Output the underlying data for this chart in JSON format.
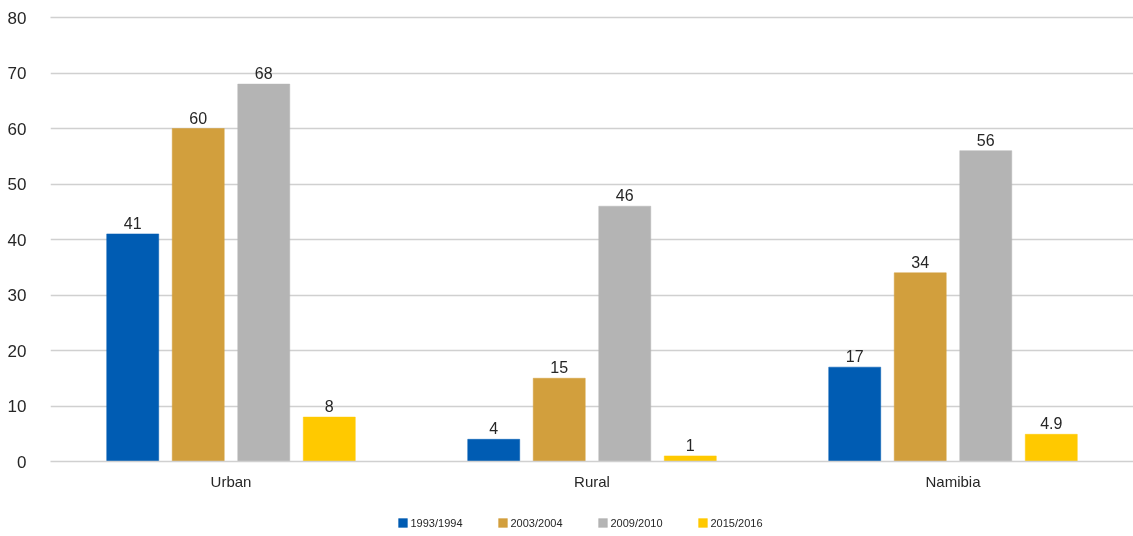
{
  "chart_data": {
    "type": "bar",
    "categories": [
      "Urban",
      "Rural",
      "Namibia"
    ],
    "series": [
      {
        "name": "1993/1994",
        "color": "#005cb3",
        "values": [
          41,
          4,
          17
        ]
      },
      {
        "name": "2003/2004",
        "color": "#d29f3d",
        "values": [
          60,
          15,
          34
        ]
      },
      {
        "name": "2009/2010",
        "color": "#b4b4b4",
        "values": [
          68,
          46,
          56
        ]
      },
      {
        "name": "2015/2016",
        "color": "#ffc900",
        "values": [
          8,
          1,
          4.9
        ]
      }
    ],
    "ylim": [
      0,
      80
    ],
    "yticks": [
      0,
      10,
      20,
      30,
      40,
      50,
      60,
      70,
      80
    ],
    "grid": "y",
    "legend": "bottom",
    "data_labels": true
  }
}
